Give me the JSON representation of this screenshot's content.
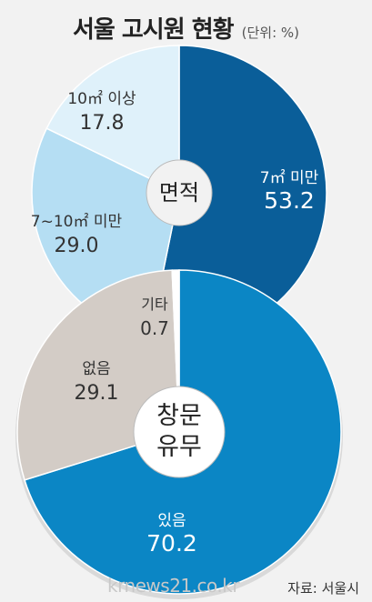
{
  "title": "서울 고시원 현황",
  "unit": "(단위: %)",
  "source": "자료: 서울시",
  "watermark": "krnews21.co.kr",
  "chart_data": [
    {
      "type": "pie",
      "center_label": "면적",
      "slices": [
        {
          "label": "7㎡ 미만",
          "value": 53.2,
          "color": "#0a5e99",
          "text_color": "#ffffff"
        },
        {
          "label": "7~10㎡ 미만",
          "value": 29.0,
          "color": "#b5def3",
          "text_color": "#333333"
        },
        {
          "label": "10㎡ 이상",
          "value": 17.8,
          "color": "#dff1fa",
          "text_color": "#333333"
        }
      ]
    },
    {
      "type": "pie",
      "center_label": [
        "창문",
        "유무"
      ],
      "slices": [
        {
          "label": "있음",
          "value": 70.2,
          "color": "#0b86c5",
          "text_color": "#ffffff"
        },
        {
          "label": "없음",
          "value": 29.1,
          "color": "#d3ccc6",
          "text_color": "#333333"
        },
        {
          "label": "기타",
          "value": 0.7,
          "color": "#ffffff",
          "text_color": "#333333"
        }
      ]
    }
  ]
}
